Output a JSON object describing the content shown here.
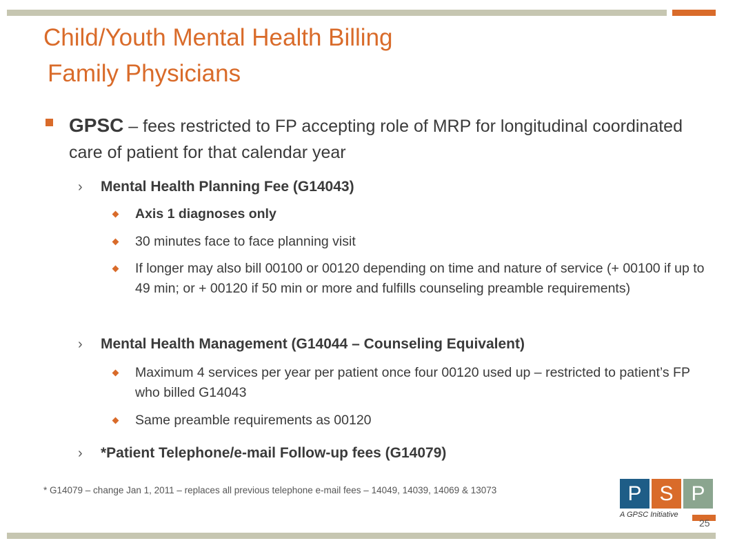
{
  "slide": {
    "title": "Child/Youth Mental Health Billing",
    "subtitle": "Family Physicians",
    "main_point": {
      "strong": "GPSC",
      "text": " – fees restricted to FP accepting role of MRP for longitudinal coordinated care of patient for that calendar year"
    },
    "sections": [
      {
        "heading": "Mental Health Planning Fee (G14043)",
        "items": [
          "Axis 1 diagnoses only",
          "30 minutes face to face planning visit",
          "If longer may also bill 00100 or 00120 depending on time and nature of service (+ 00100 if up to 49 min; or + 00120 if  50 min or more and fulfills counseling preamble requirements)"
        ]
      },
      {
        "heading": "Mental Health Management (G14044 – Counseling Equivalent)",
        "items": [
          "Maximum 4 services per year per patient once four 00120 used up – restricted to patient’s FP who billed G14043",
          "Same preamble requirements as 00120"
        ]
      },
      {
        "heading": "*Patient Telephone/e-mail Follow-up fees (G14079)",
        "items": []
      }
    ],
    "footnote": "* G14079 – change Jan 1, 2011 – replaces all previous telephone e-mail fees – 14049, 14039, 14069 & 13073",
    "page_number": "25",
    "chevron": "›"
  },
  "logo": {
    "letters": [
      "P",
      "S",
      "P"
    ],
    "tagline": "A GPSC Initiative"
  },
  "colors": {
    "accent": "#d96b2a",
    "bar_gray": "#c6c6b1",
    "logo_blue": "#1e5d87",
    "logo_green": "#8ba58f"
  }
}
